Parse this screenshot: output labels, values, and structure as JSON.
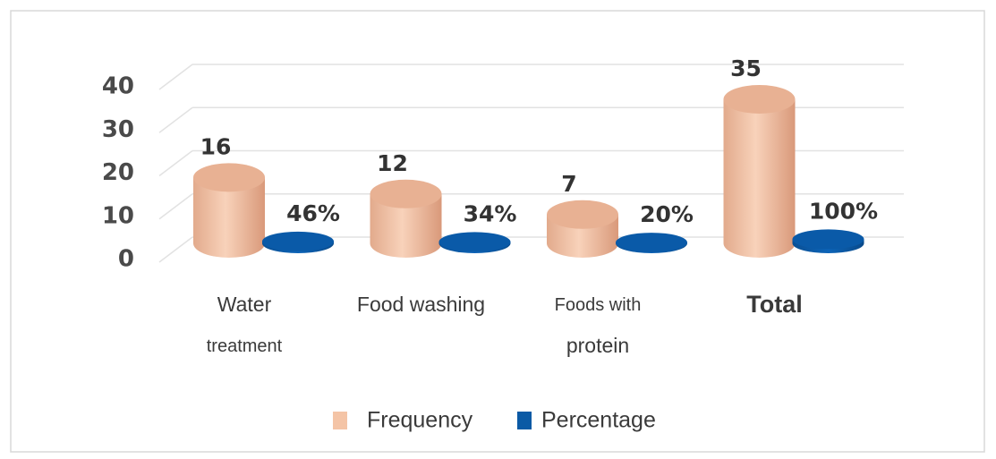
{
  "chart_data": {
    "type": "bar3d",
    "categories": [
      "Water treatment",
      "Food washing",
      "Foods with protein",
      "Total"
    ],
    "series": [
      {
        "name": "Frequency",
        "color": "#f4c4a6",
        "values": [
          16,
          12,
          7,
          35
        ]
      },
      {
        "name": "Percentage",
        "color": "#0b5aa5",
        "values": [
          0.46,
          0.34,
          0.2,
          1
        ],
        "value_labels": [
          "46%",
          "34%",
          "20%",
          "100%"
        ]
      }
    ],
    "ylim": [
      0,
      40
    ],
    "yticks": [
      0,
      10,
      20,
      30,
      40
    ],
    "grid": true,
    "legend": "bottom"
  }
}
